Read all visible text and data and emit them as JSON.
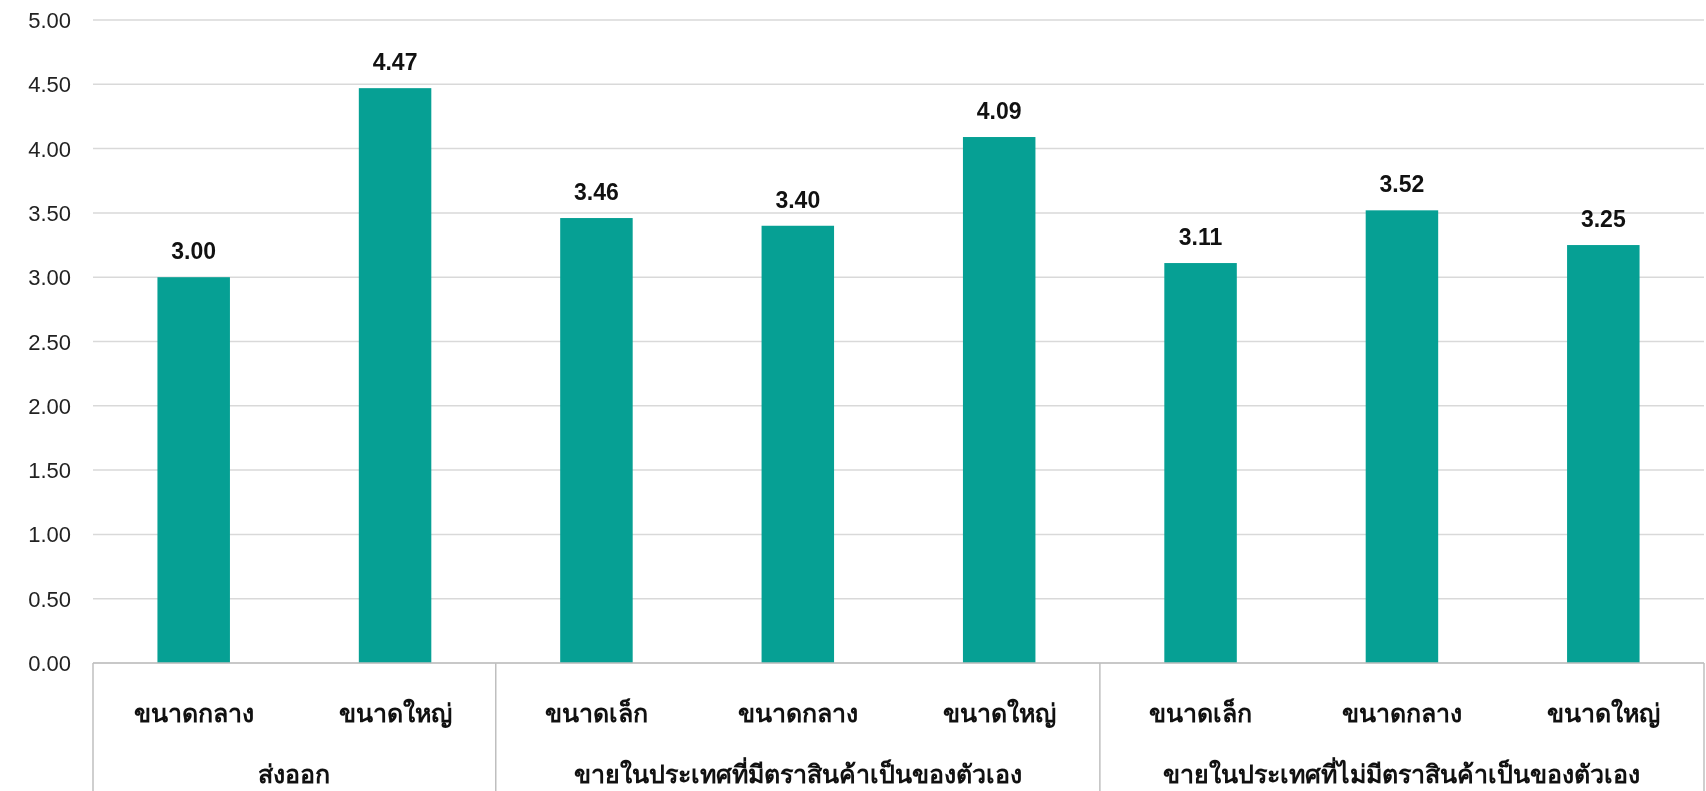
{
  "chart_data": {
    "type": "bar",
    "categories": [
      "ขนาดกลาง",
      "ขนาดใหญ่",
      "ขนาดเล็ก",
      "ขนาดกลาง",
      "ขนาดใหญ่",
      "ขนาดเล็ก",
      "ขนาดกลาง",
      "ขนาดใหญ่"
    ],
    "values": [
      3.0,
      4.47,
      3.46,
      3.4,
      4.09,
      3.11,
      3.52,
      3.25
    ],
    "value_labels": [
      "3.00",
      "4.47",
      "3.46",
      "3.40",
      "4.09",
      "3.11",
      "3.52",
      "3.25"
    ],
    "color": "#06a094",
    "ylim": [
      0,
      5
    ],
    "yticks": [
      {
        "value": 0,
        "label": "0.00"
      },
      {
        "value": 0.5,
        "label": "0.50"
      },
      {
        "value": 1,
        "label": "1.00"
      },
      {
        "value": 1.5,
        "label": "1.50"
      },
      {
        "value": 2,
        "label": "2.00"
      },
      {
        "value": 2.5,
        "label": "2.50"
      },
      {
        "value": 3,
        "label": "3.00"
      },
      {
        "value": 3.5,
        "label": "3.50"
      },
      {
        "value": 4,
        "label": "4.00"
      },
      {
        "value": 4.5,
        "label": "4.50"
      },
      {
        "value": 5,
        "label": "5.00"
      }
    ],
    "grid": "y",
    "annotations": [
      "ส่งออก",
      "ขายในประเทศที่มีตราสินค้าเป็นของตัวเอง",
      "ขายในประเทศที่ไม่มีตราสินค้าเป็นของตัวเอง"
    ]
  }
}
